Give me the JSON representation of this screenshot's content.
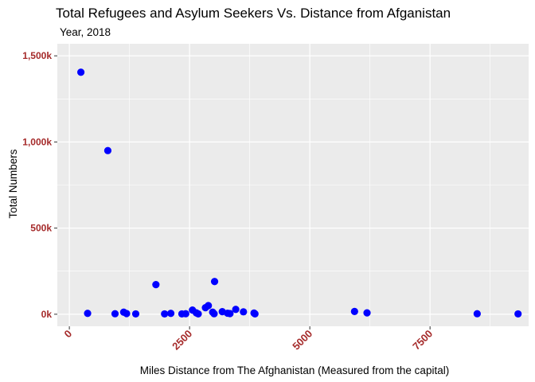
{
  "chart_data": {
    "type": "scatter",
    "title": "Total Refugees and Asylum Seekers Vs. Distance from Afganistan",
    "subtitle": "Year, 2018",
    "xlabel": "Miles Distance from The Afghanistan (Measured from the capital)",
    "ylabel": "Total Numbers",
    "xlim": [
      -250,
      9550
    ],
    "ylim": [
      -70000,
      1570000
    ],
    "x_ticks": [
      0,
      2500,
      5000,
      7500
    ],
    "x_tick_labels": [
      "0",
      "2500",
      "5000",
      "7500"
    ],
    "x_minor_ticks": [
      1250,
      3750,
      6250,
      8750
    ],
    "y_ticks": [
      0,
      500000,
      1000000,
      1500000
    ],
    "y_tick_labels": [
      "0k",
      "500k",
      "1,000k",
      "1,500k"
    ],
    "y_minor_ticks": [
      250000,
      750000,
      1250000
    ],
    "grid": true,
    "panel_color": "#ebebeb",
    "point_color": "#0000ff",
    "tick_label_color": "#a52a2a",
    "points": [
      {
        "x": 240,
        "y": 1405000
      },
      {
        "x": 380,
        "y": 5000
      },
      {
        "x": 800,
        "y": 950000
      },
      {
        "x": 950,
        "y": 3000
      },
      {
        "x": 1130,
        "y": 12000
      },
      {
        "x": 1190,
        "y": 4000
      },
      {
        "x": 1380,
        "y": 2000
      },
      {
        "x": 1800,
        "y": 172000
      },
      {
        "x": 1980,
        "y": 2000
      },
      {
        "x": 2110,
        "y": 5000
      },
      {
        "x": 2340,
        "y": 2000
      },
      {
        "x": 2420,
        "y": 3000
      },
      {
        "x": 2560,
        "y": 24000
      },
      {
        "x": 2640,
        "y": 8000
      },
      {
        "x": 2680,
        "y": 2000
      },
      {
        "x": 2830,
        "y": 38000
      },
      {
        "x": 2890,
        "y": 50000
      },
      {
        "x": 2980,
        "y": 12000
      },
      {
        "x": 3010,
        "y": 3000
      },
      {
        "x": 3020,
        "y": 190000
      },
      {
        "x": 3180,
        "y": 15000
      },
      {
        "x": 3290,
        "y": 6000
      },
      {
        "x": 3340,
        "y": 4000
      },
      {
        "x": 3460,
        "y": 28000
      },
      {
        "x": 3620,
        "y": 14000
      },
      {
        "x": 3840,
        "y": 7000
      },
      {
        "x": 3860,
        "y": 2000
      },
      {
        "x": 5930,
        "y": 16000
      },
      {
        "x": 6190,
        "y": 8000
      },
      {
        "x": 8480,
        "y": 3000
      },
      {
        "x": 9330,
        "y": 2000
      }
    ]
  }
}
